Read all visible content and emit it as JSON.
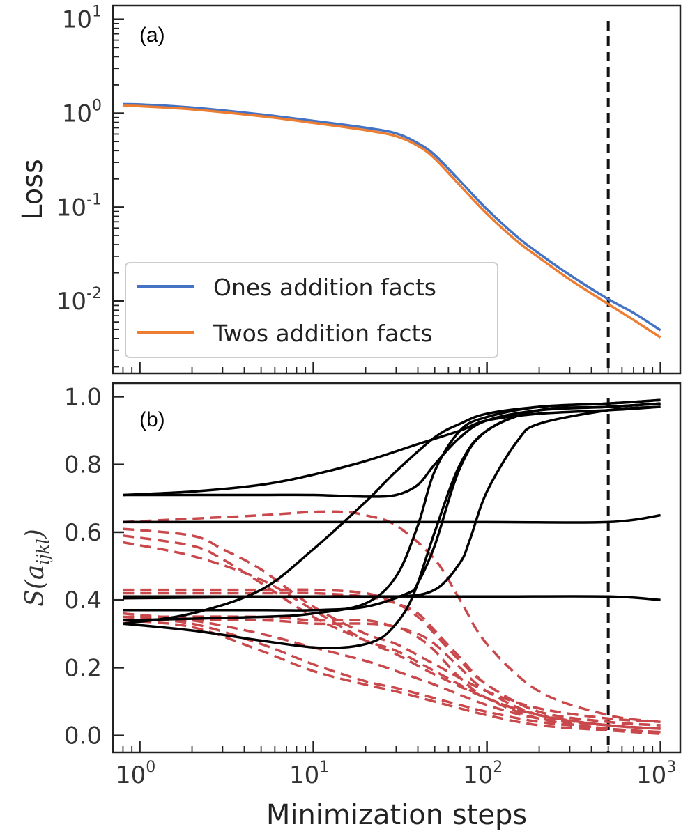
{
  "chart_data": [
    {
      "panel": "(a)",
      "type": "line",
      "xscale": "log",
      "yscale": "log",
      "xlim": [
        0.7,
        1300
      ],
      "ylim": [
        0.0017,
        14
      ],
      "xlabel": "",
      "ylabel": "Loss",
      "yticks": [
        {
          "base": "10",
          "exp": "1",
          "value": 10
        },
        {
          "base": "10",
          "exp": "0",
          "value": 1
        },
        {
          "base": "10",
          "exp": "-1",
          "value": 0.1
        },
        {
          "base": "10",
          "exp": "-2",
          "value": 0.01
        }
      ],
      "vline_x": 500,
      "legend_position": "lower-left",
      "series": [
        {
          "name": "Ones addition facts",
          "color": "#4472c4",
          "x": [
            0.8,
            1,
            2,
            5,
            10,
            20,
            30,
            40,
            50,
            70,
            100,
            150,
            200,
            300,
            500,
            700,
            1000
          ],
          "y": [
            1.25,
            1.24,
            1.15,
            0.97,
            0.83,
            0.7,
            0.61,
            0.48,
            0.36,
            0.19,
            0.095,
            0.048,
            0.032,
            0.019,
            0.0105,
            0.0075,
            0.0049
          ]
        },
        {
          "name": "Twos addition facts",
          "color": "#ed7d31",
          "x": [
            0.8,
            1,
            2,
            5,
            10,
            20,
            30,
            40,
            50,
            70,
            100,
            150,
            200,
            300,
            500,
            700,
            1000
          ],
          "y": [
            1.2,
            1.19,
            1.1,
            0.93,
            0.79,
            0.66,
            0.57,
            0.45,
            0.33,
            0.17,
            0.085,
            0.043,
            0.029,
            0.017,
            0.0093,
            0.0063,
            0.0041
          ]
        }
      ]
    },
    {
      "panel": "(b)",
      "type": "line",
      "xscale": "log",
      "yscale": "linear",
      "xlim": [
        0.7,
        1300
      ],
      "ylim": [
        -0.05,
        1.04
      ],
      "xlabel": "Minimization steps",
      "ylabel": "S(a_ijkl)",
      "ylabel_parts": {
        "main": "S(a",
        "sub": "ijkl",
        "close": ")"
      },
      "ytick_labels": [
        "0.0",
        "0.2",
        "0.4",
        "0.6",
        "0.8",
        "1.0"
      ],
      "yticks": [
        0.0,
        0.2,
        0.4,
        0.6,
        0.8,
        1.0
      ],
      "xticks": [
        {
          "base": "10",
          "exp": "0",
          "value": 1
        },
        {
          "base": "10",
          "exp": "1",
          "value": 10
        },
        {
          "base": "10",
          "exp": "2",
          "value": 100
        },
        {
          "base": "10",
          "exp": "3",
          "value": 1000
        }
      ],
      "vline_x": 500,
      "series": [
        {
          "name": "solid-1",
          "style": "solid",
          "color": "#000000",
          "x": [
            0.8,
            2,
            5,
            10,
            20,
            40,
            70,
            100,
            200,
            500,
            1000
          ],
          "y": [
            0.71,
            0.72,
            0.74,
            0.77,
            0.81,
            0.86,
            0.9,
            0.93,
            0.95,
            0.96,
            0.97
          ]
        },
        {
          "name": "solid-2",
          "style": "solid",
          "color": "#000000",
          "x": [
            0.8,
            2,
            5,
            10,
            20,
            30,
            40,
            50,
            70,
            100,
            200,
            500,
            1000
          ],
          "y": [
            0.71,
            0.71,
            0.71,
            0.71,
            0.705,
            0.71,
            0.74,
            0.8,
            0.88,
            0.93,
            0.96,
            0.97,
            0.98
          ]
        },
        {
          "name": "solid-3",
          "style": "solid",
          "color": "#000000",
          "x": [
            0.8,
            2,
            5,
            10,
            20,
            30,
            50,
            70,
            100,
            200,
            500,
            1000
          ],
          "y": [
            0.33,
            0.36,
            0.43,
            0.55,
            0.69,
            0.78,
            0.88,
            0.92,
            0.95,
            0.97,
            0.98,
            0.99
          ]
        },
        {
          "name": "solid-4",
          "style": "solid",
          "color": "#000000",
          "x": [
            0.8,
            5,
            10,
            20,
            30,
            40,
            50,
            70,
            100,
            200,
            500,
            1000
          ],
          "y": [
            0.34,
            0.35,
            0.36,
            0.39,
            0.47,
            0.62,
            0.78,
            0.9,
            0.94,
            0.97,
            0.98,
            0.99
          ]
        },
        {
          "name": "solid-5",
          "style": "solid",
          "color": "#000000",
          "x": [
            0.8,
            5,
            10,
            20,
            35,
            40,
            50,
            70,
            100,
            200,
            500,
            1000
          ],
          "y": [
            0.37,
            0.37,
            0.37,
            0.38,
            0.42,
            0.45,
            0.56,
            0.79,
            0.9,
            0.96,
            0.97,
            0.98
          ]
        },
        {
          "name": "solid-6",
          "style": "solid",
          "color": "#000000",
          "x": [
            0.8,
            10,
            30,
            50,
            70,
            80,
            100,
            150,
            200,
            500,
            1000
          ],
          "y": [
            0.41,
            0.41,
            0.41,
            0.43,
            0.51,
            0.58,
            0.72,
            0.87,
            0.92,
            0.96,
            0.97
          ]
        },
        {
          "name": "solid-7",
          "style": "solid",
          "color": "#000000",
          "x": [
            0.8,
            2,
            5,
            10,
            15,
            20,
            25,
            30,
            35,
            40,
            50,
            70,
            100,
            200,
            500,
            1000
          ],
          "y": [
            0.33,
            0.31,
            0.28,
            0.26,
            0.26,
            0.27,
            0.29,
            0.33,
            0.38,
            0.45,
            0.6,
            0.8,
            0.9,
            0.96,
            0.97,
            0.98
          ]
        },
        {
          "name": "solid-8",
          "style": "solid",
          "color": "#000000",
          "x": [
            0.8,
            10,
            100,
            500,
            1000
          ],
          "y": [
            0.63,
            0.63,
            0.63,
            0.63,
            0.65
          ]
        },
        {
          "name": "solid-9",
          "style": "solid",
          "color": "#000000",
          "x": [
            0.8,
            10,
            100,
            500,
            1000
          ],
          "y": [
            0.405,
            0.41,
            0.41,
            0.41,
            0.4
          ]
        },
        {
          "name": "dashed-1",
          "style": "dashed",
          "color": "#c9484c",
          "x": [
            0.8,
            2,
            5,
            10,
            15,
            20,
            30,
            50,
            70,
            100,
            200,
            500,
            1000
          ],
          "y": [
            0.63,
            0.64,
            0.65,
            0.66,
            0.66,
            0.65,
            0.62,
            0.52,
            0.4,
            0.27,
            0.13,
            0.06,
            0.04
          ]
        },
        {
          "name": "dashed-2",
          "style": "dashed",
          "color": "#c9484c",
          "x": [
            0.8,
            2,
            3,
            5,
            10,
            20,
            30,
            50,
            100,
            200,
            500,
            1000
          ],
          "y": [
            0.61,
            0.59,
            0.55,
            0.49,
            0.38,
            0.3,
            0.27,
            0.21,
            0.13,
            0.08,
            0.05,
            0.04
          ]
        },
        {
          "name": "dashed-3",
          "style": "dashed",
          "color": "#c9484c",
          "x": [
            0.8,
            2,
            3,
            5,
            10,
            20,
            30,
            50,
            100,
            200,
            500,
            1000
          ],
          "y": [
            0.59,
            0.56,
            0.52,
            0.45,
            0.35,
            0.28,
            0.25,
            0.19,
            0.11,
            0.06,
            0.03,
            0.02
          ]
        },
        {
          "name": "dashed-4",
          "style": "dashed",
          "color": "#c9484c",
          "x": [
            0.8,
            2,
            5,
            10,
            20,
            30,
            50,
            100,
            200,
            500,
            1000
          ],
          "y": [
            0.57,
            0.53,
            0.46,
            0.37,
            0.28,
            0.24,
            0.18,
            0.11,
            0.06,
            0.03,
            0.02
          ]
        },
        {
          "name": "dashed-5",
          "style": "dashed",
          "color": "#c9484c",
          "x": [
            0.8,
            5,
            10,
            20,
            30,
            40,
            50,
            70,
            100,
            200,
            500,
            1000
          ],
          "y": [
            0.43,
            0.43,
            0.43,
            0.42,
            0.39,
            0.35,
            0.3,
            0.22,
            0.15,
            0.07,
            0.04,
            0.03
          ]
        },
        {
          "name": "dashed-6",
          "style": "dashed",
          "color": "#c9484c",
          "x": [
            0.8,
            5,
            10,
            20,
            30,
            40,
            50,
            70,
            100,
            200,
            500,
            1000
          ],
          "y": [
            0.42,
            0.42,
            0.42,
            0.41,
            0.39,
            0.36,
            0.31,
            0.23,
            0.15,
            0.07,
            0.04,
            0.03
          ]
        },
        {
          "name": "dashed-7",
          "style": "dashed",
          "color": "#c9484c",
          "x": [
            0.8,
            5,
            10,
            20,
            30,
            40,
            50,
            70,
            100,
            200,
            500,
            1000
          ],
          "y": [
            0.35,
            0.35,
            0.34,
            0.34,
            0.32,
            0.3,
            0.27,
            0.2,
            0.13,
            0.06,
            0.03,
            0.02
          ]
        },
        {
          "name": "dashed-8",
          "style": "dashed",
          "color": "#c9484c",
          "x": [
            0.8,
            5,
            10,
            20,
            30,
            40,
            50,
            70,
            100,
            200,
            500,
            1000
          ],
          "y": [
            0.34,
            0.34,
            0.33,
            0.33,
            0.32,
            0.29,
            0.25,
            0.17,
            0.11,
            0.05,
            0.02,
            0.01
          ]
        },
        {
          "name": "dashed-9",
          "style": "dashed",
          "color": "#c9484c",
          "x": [
            0.8,
            2,
            5,
            10,
            20,
            30,
            50,
            70,
            100,
            200,
            500,
            1000
          ],
          "y": [
            0.35,
            0.33,
            0.27,
            0.21,
            0.16,
            0.14,
            0.11,
            0.09,
            0.07,
            0.04,
            0.02,
            0.01
          ]
        },
        {
          "name": "dashed-10",
          "style": "dashed",
          "color": "#c9484c",
          "x": [
            0.8,
            2,
            5,
            10,
            20,
            30,
            50,
            70,
            100,
            200,
            500,
            1000
          ],
          "y": [
            0.34,
            0.32,
            0.25,
            0.19,
            0.15,
            0.13,
            0.1,
            0.08,
            0.06,
            0.03,
            0.015,
            0.005
          ]
        },
        {
          "name": "dashed-11",
          "style": "dashed",
          "color": "#c9484c",
          "x": [
            0.8,
            2,
            5,
            10,
            20,
            30,
            50,
            100,
            200,
            500,
            1000
          ],
          "y": [
            0.36,
            0.34,
            0.3,
            0.26,
            0.22,
            0.19,
            0.15,
            0.09,
            0.05,
            0.03,
            0.02
          ]
        }
      ]
    }
  ]
}
